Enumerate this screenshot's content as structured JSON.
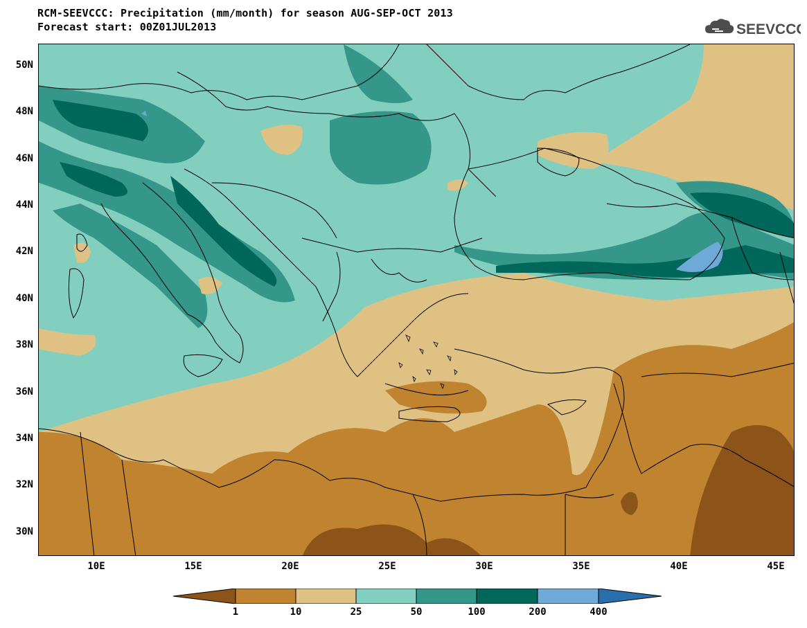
{
  "title": {
    "line1": "RCM-SEEVCCC: Precipitation (mm/month) for season AUG-SEP-OCT 2013",
    "line2": "Forecast start: 00Z01JUL2013"
  },
  "logo": {
    "text": "SEEVCCC",
    "icon": "cloud-icon",
    "color": "#4d4d4d"
  },
  "map": {
    "variable": "Precipitation",
    "units": "mm/month",
    "season": "AUG-SEP-OCT 2013",
    "lon_range": [
      7,
      46
    ],
    "lat_range": [
      29,
      51
    ],
    "lat_labels": [
      "50N",
      "48N",
      "46N",
      "44N",
      "42N",
      "40N",
      "38N",
      "36N",
      "34N",
      "32N",
      "30N"
    ],
    "lon_labels": [
      "10E",
      "15E",
      "20E",
      "25E",
      "30E",
      "35E",
      "40E",
      "45E"
    ]
  },
  "colorbar": {
    "labels": [
      "1",
      "10",
      "25",
      "50",
      "100",
      "200",
      "400"
    ],
    "colors": [
      "#8c5418",
      "#c0832f",
      "#dfc283",
      "#82cfc0",
      "#35968a",
      "#00675a",
      "#6ea9d7",
      "#2a6fad"
    ]
  }
}
